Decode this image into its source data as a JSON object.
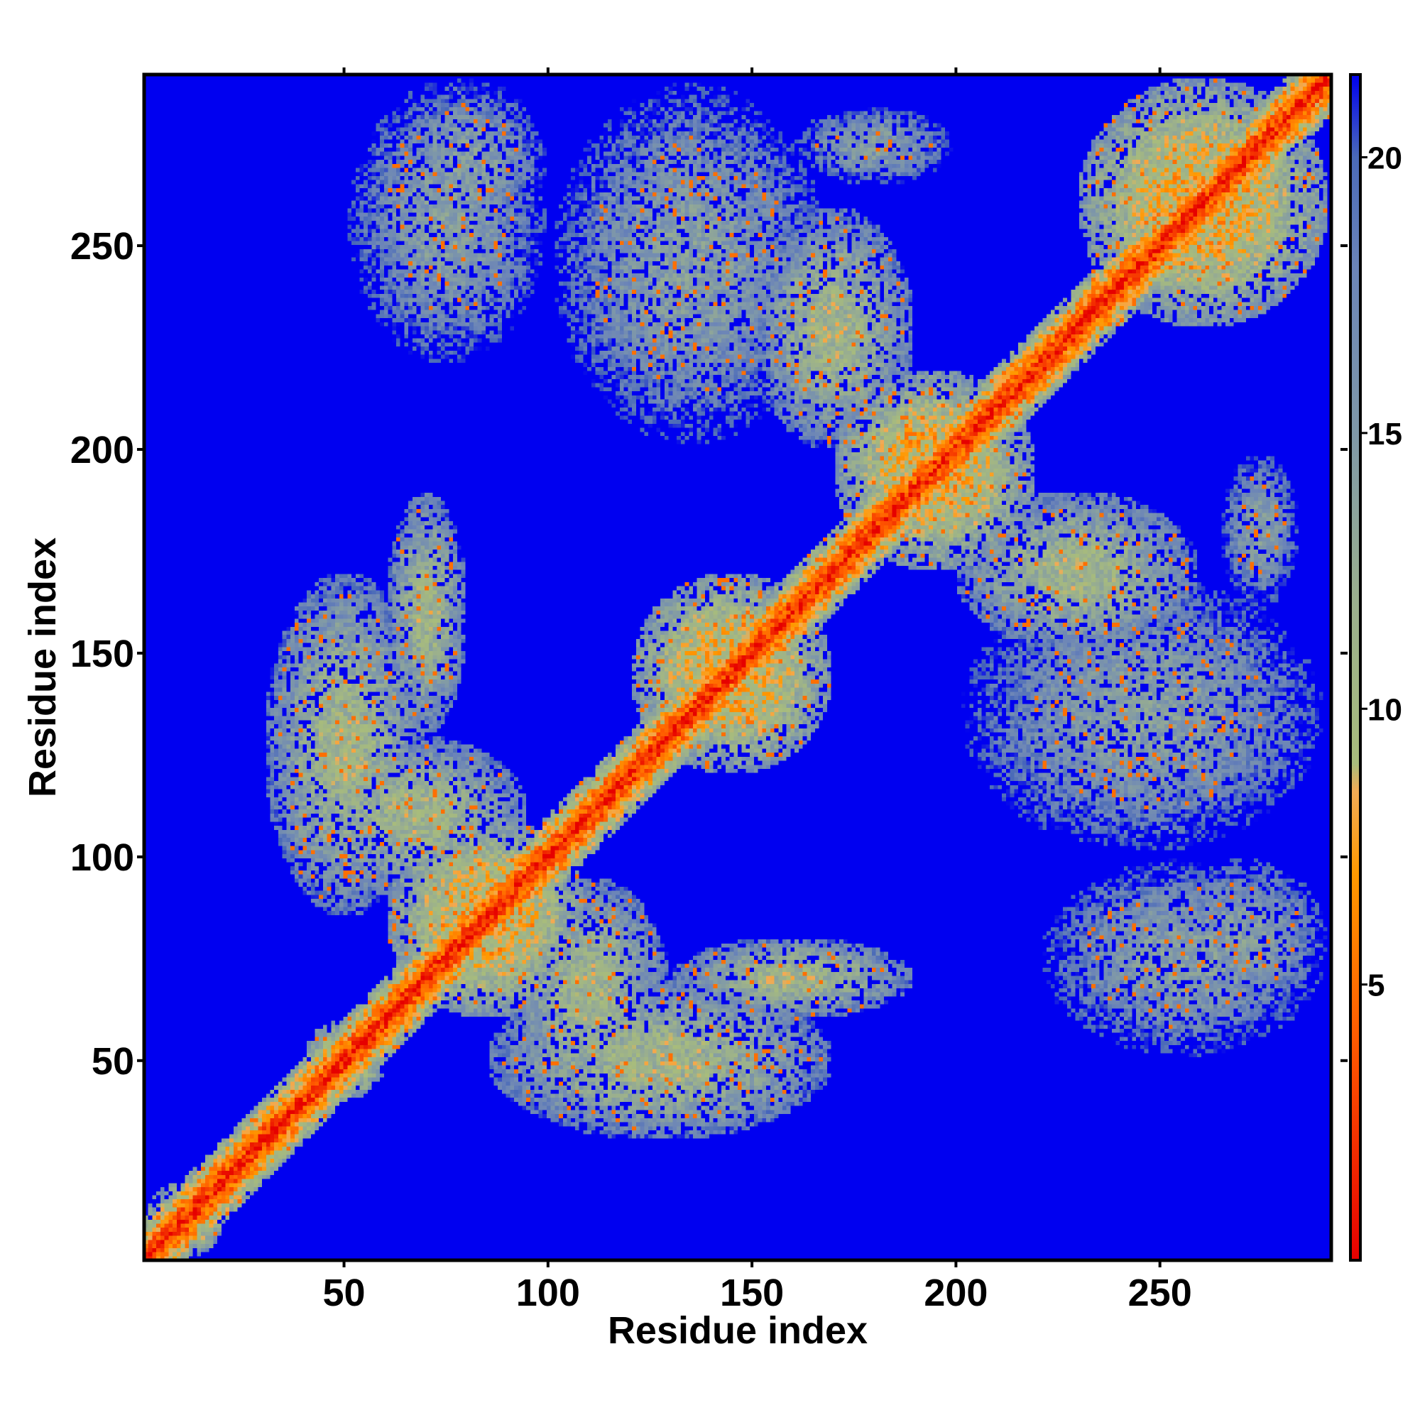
{
  "chart_data": {
    "type": "heatmap",
    "title": "",
    "xlabel": "Residue index",
    "ylabel": "Residue index",
    "xlim": [
      1,
      292
    ],
    "ylim": [
      1,
      292
    ],
    "xticks": [
      50,
      100,
      150,
      200,
      250
    ],
    "yticks": [
      50,
      100,
      150,
      200,
      250
    ],
    "matrix_size": 292,
    "colorbar": {
      "range": [
        0,
        21.5
      ],
      "ticks": [
        5,
        10,
        15,
        20
      ],
      "colormap": [
        {
          "value": 0,
          "color": "#e60000"
        },
        {
          "value": 4,
          "color": "#ff5a00"
        },
        {
          "value": 7,
          "color": "#ff9900"
        },
        {
          "value": 8.5,
          "color": "#f2aa55"
        },
        {
          "value": 9,
          "color": "#a8bc7c"
        },
        {
          "value": 12,
          "color": "#9aaf8e"
        },
        {
          "value": 15,
          "color": "#7f98a8"
        },
        {
          "value": 18,
          "color": "#6b84b8"
        },
        {
          "value": 20,
          "color": "#4a6ab8"
        },
        {
          "value": 21.5,
          "color": "#0000f0"
        }
      ]
    },
    "background_color": "#0000f0",
    "diagonal_color": "#e60000",
    "contact_regions": [
      {
        "x": [
          1,
          20
        ],
        "y": [
          1,
          20
        ],
        "level": "near"
      },
      {
        "x": [
          40,
          60
        ],
        "y": [
          40,
          60
        ],
        "level": "near"
      },
      {
        "x": [
          60,
          110
        ],
        "y": [
          60,
          110
        ],
        "level": "near"
      },
      {
        "x": [
          120,
          170
        ],
        "y": [
          120,
          170
        ],
        "level": "near"
      },
      {
        "x": [
          170,
          220
        ],
        "y": [
          170,
          220
        ],
        "level": "near"
      },
      {
        "x": [
          230,
          292
        ],
        "y": [
          230,
          292
        ],
        "level": "near"
      },
      {
        "x": [
          30,
          70
        ],
        "y": [
          85,
          170
        ],
        "level": "mid"
      },
      {
        "x": [
          90,
          130
        ],
        "y": [
          40,
          95
        ],
        "level": "mid"
      },
      {
        "x": [
          130,
          190
        ],
        "y": [
          60,
          80
        ],
        "level": "mid"
      },
      {
        "x": [
          200,
          260
        ],
        "y": [
          150,
          190
        ],
        "level": "mid"
      },
      {
        "x": [
          250,
          292
        ],
        "y": [
          60,
          100
        ],
        "level": "far"
      },
      {
        "x": [
          100,
          170
        ],
        "y": [
          200,
          292
        ],
        "level": "far"
      },
      {
        "x": [
          50,
          100
        ],
        "y": [
          220,
          292
        ],
        "level": "far"
      },
      {
        "x": [
          160,
          200
        ],
        "y": [
          265,
          285
        ],
        "level": "far"
      }
    ]
  }
}
